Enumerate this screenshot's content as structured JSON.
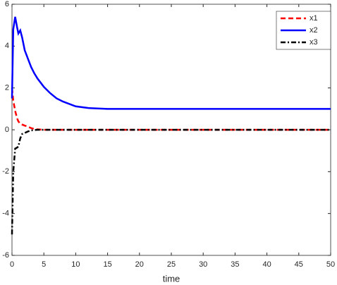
{
  "chart_data": {
    "type": "line",
    "xlabel": "time",
    "x": [
      0,
      0.2,
      0.5,
      0.8,
      1,
      1.3,
      1.6,
      2,
      2.5,
      3,
      3.5,
      4,
      5,
      6,
      7,
      8,
      10,
      12,
      15,
      20,
      30,
      40,
      50
    ],
    "series": [
      {
        "name": "x1",
        "color": "#ff0000",
        "style": "dashed",
        "values": [
          2,
          1.4,
          0.9,
          0.55,
          0.4,
          0.3,
          0.25,
          0.2,
          0.15,
          0.08,
          0.04,
          0.02,
          0,
          0,
          0,
          0,
          0,
          0,
          0,
          0,
          0,
          0,
          0
        ]
      },
      {
        "name": "x2",
        "color": "#0000ff",
        "style": "solid",
        "values": [
          1.5,
          4.8,
          5.4,
          4.9,
          4.6,
          4.75,
          4.4,
          3.8,
          3.4,
          3.0,
          2.7,
          2.45,
          2.05,
          1.75,
          1.5,
          1.35,
          1.12,
          1.04,
          1.0,
          1,
          1,
          1,
          1
        ]
      },
      {
        "name": "x3",
        "color": "#000000",
        "style": "dashdot",
        "values": [
          -5,
          -2,
          -0.9,
          -0.85,
          -0.8,
          -0.4,
          -0.2,
          -0.15,
          -0.08,
          -0.03,
          -0.01,
          0,
          0,
          0,
          0,
          0,
          0,
          0,
          0,
          0,
          0,
          0,
          0
        ]
      }
    ],
    "xlim": [
      0,
      50
    ],
    "xticks": [
      0,
      5,
      10,
      15,
      20,
      25,
      30,
      35,
      40,
      45,
      50
    ],
    "ylim": [
      -6,
      6
    ],
    "yticks": [
      -6,
      -4,
      -2,
      0,
      2,
      4,
      6
    ],
    "legend": "top-right"
  }
}
